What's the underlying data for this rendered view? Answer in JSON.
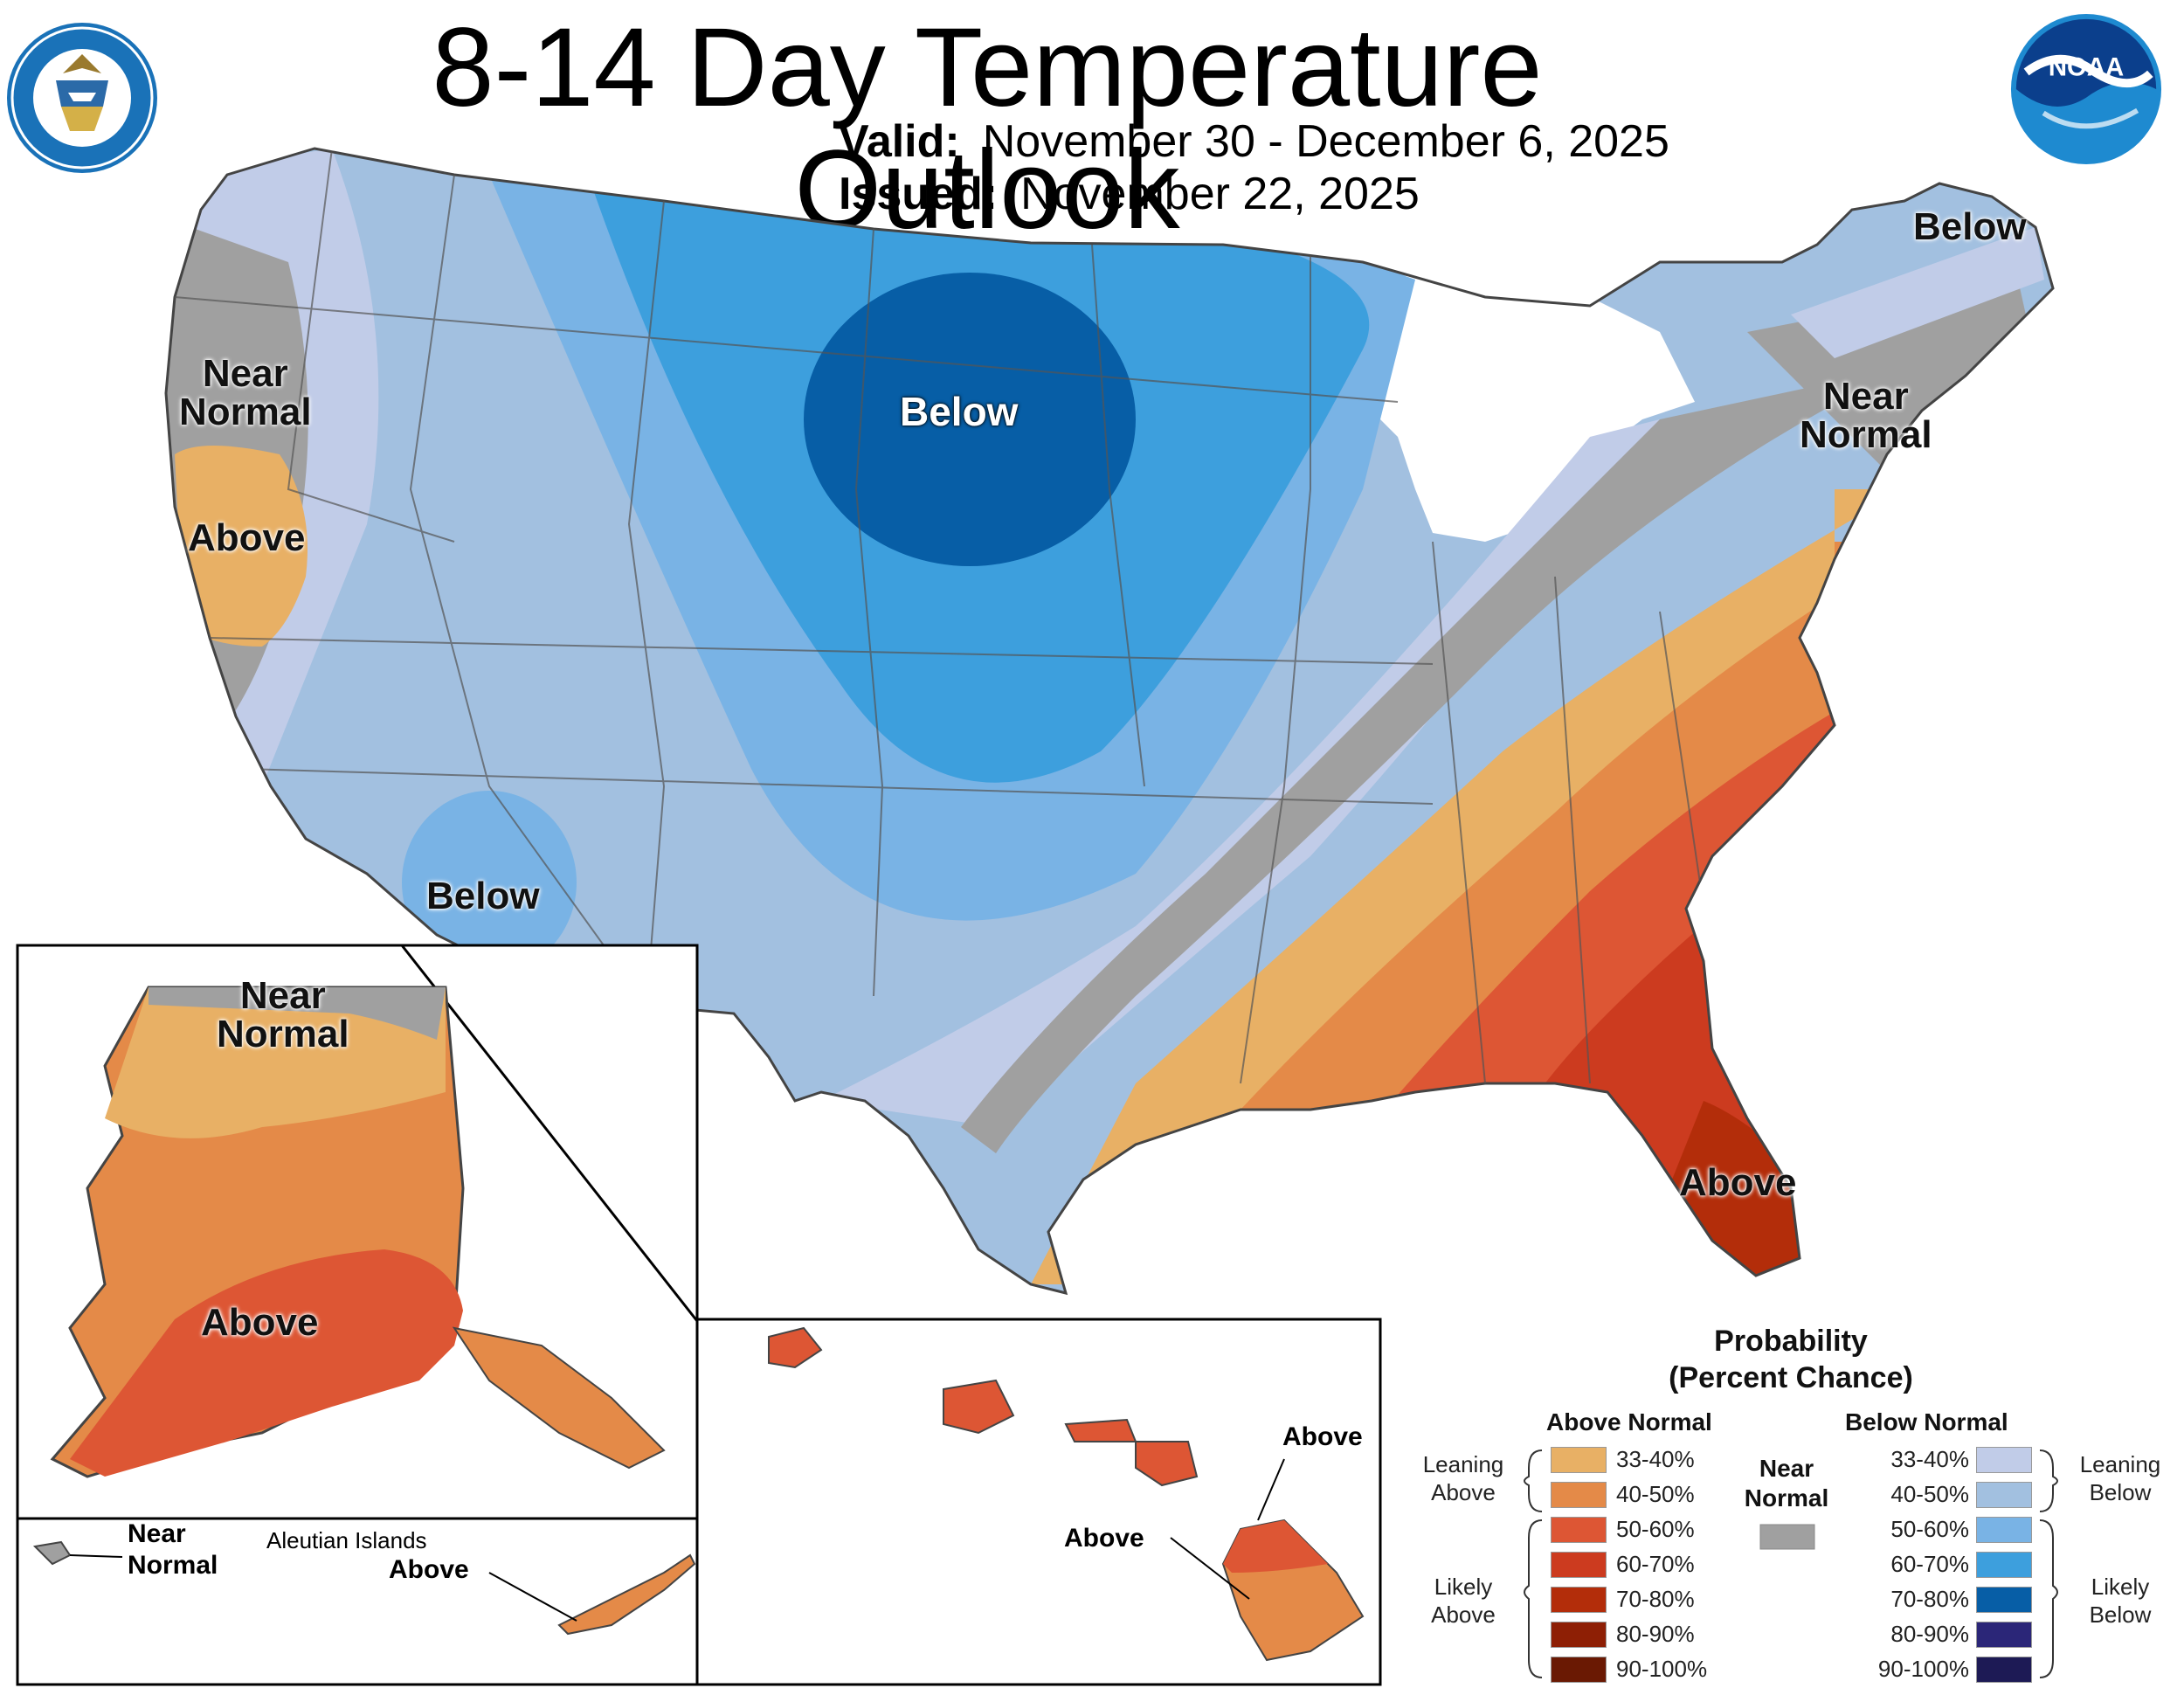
{
  "title": "8-14 Day Temperature Outlook",
  "valid_label": "Valid:",
  "valid_value": "November 30 - December 6, 2025",
  "issued_label": "Issued:",
  "issued_value": "November 22, 2025",
  "logos": {
    "left": "doc-seal-icon",
    "right": "noaa-logo-icon"
  },
  "map_labels": {
    "below_north_plains": "Below",
    "below_southwest": "Below",
    "below_maine": "Below",
    "near_west_coast": "Near\nNormal",
    "near_northeast": "Near\nNormal",
    "above_california": "Above",
    "above_florida": "Above",
    "alaska_near": "Near\nNormal",
    "alaska_above": "Above",
    "aleutian_title": "Aleutian Islands",
    "aleutian_near": "Near\nNormal",
    "aleutian_above": "Above",
    "hawaii_above_1": "Above",
    "hawaii_above_2": "Above"
  },
  "legend": {
    "title": "Probability\n(Percent Chance)",
    "above_header": "Above Normal",
    "below_header": "Below Normal",
    "near_header": "Near\nNormal",
    "near_color": "#a0a0a0",
    "leaning_above": "Leaning\nAbove",
    "likely_above": "Likely\nAbove",
    "leaning_below": "Leaning\nBelow",
    "likely_below": "Likely\nBelow",
    "above": [
      {
        "range": "33-40%",
        "color": "#e8b065"
      },
      {
        "range": "40-50%",
        "color": "#e48a48"
      },
      {
        "range": "50-60%",
        "color": "#dd5634"
      },
      {
        "range": "60-70%",
        "color": "#cc3b1f"
      },
      {
        "range": "70-80%",
        "color": "#b32d0a"
      },
      {
        "range": "80-90%",
        "color": "#8e1f05"
      },
      {
        "range": "90-100%",
        "color": "#6a1903"
      }
    ],
    "below": [
      {
        "range": "33-40%",
        "color": "#c1cce8"
      },
      {
        "range": "40-50%",
        "color": "#a2c0e0"
      },
      {
        "range": "50-60%",
        "color": "#79b3e5"
      },
      {
        "range": "60-70%",
        "color": "#3d9fdd"
      },
      {
        "range": "70-80%",
        "color": "#075ea6"
      },
      {
        "range": "80-90%",
        "color": "#2b2678"
      },
      {
        "range": "90-100%",
        "color": "#1d1a55"
      }
    ]
  }
}
